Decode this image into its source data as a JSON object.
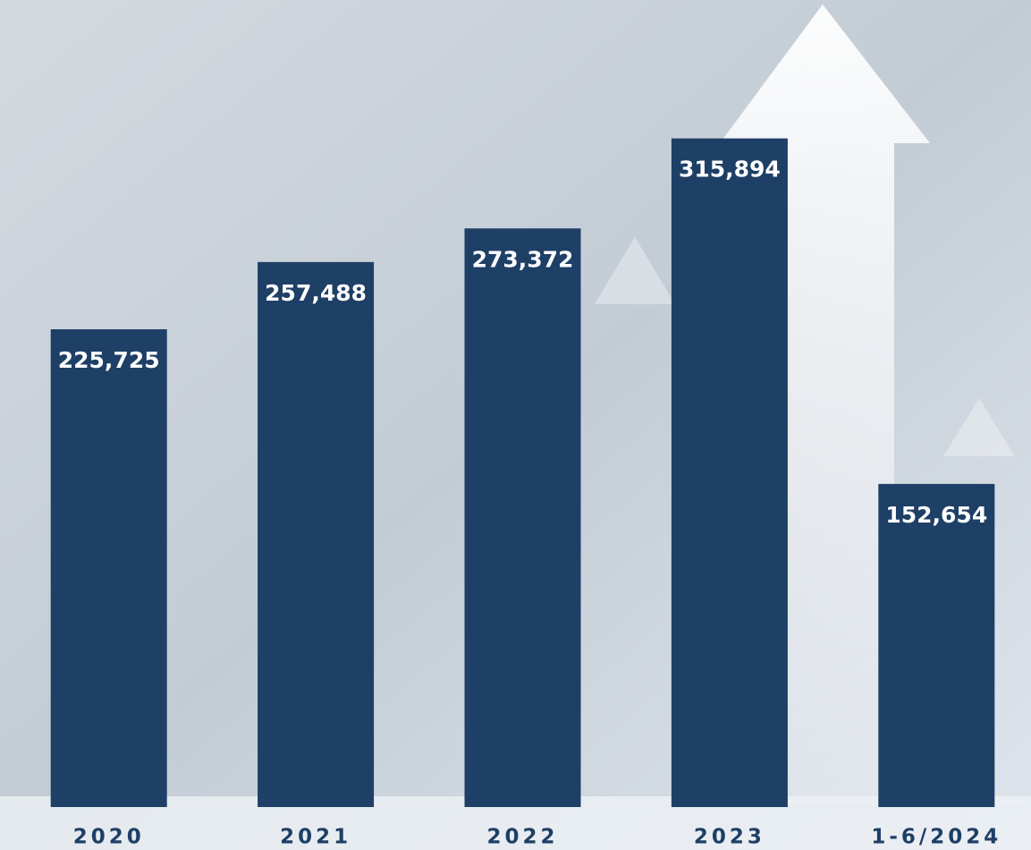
{
  "chart_data": {
    "type": "bar",
    "categories": [
      "2020",
      "2021",
      "2022",
      "2023",
      "1-6/2024"
    ],
    "values": [
      225725,
      257488,
      273372,
      315894,
      152654
    ],
    "value_labels": [
      "225,725",
      "257,488",
      "273,372",
      "315,894",
      "152,654"
    ],
    "color": "#1e3f66",
    "ylim": [
      0,
      350000
    ]
  }
}
